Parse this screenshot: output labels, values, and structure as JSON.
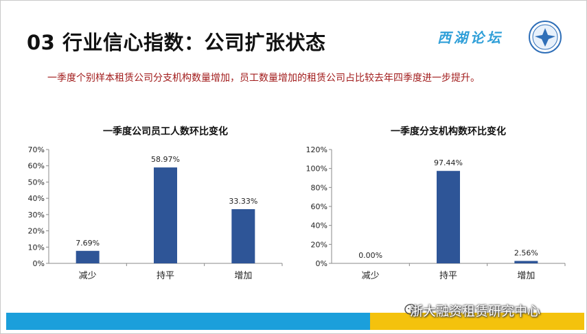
{
  "slide": {
    "title": "03 行业信心指数：公司扩张状态",
    "logo_text": "西湖论坛",
    "subtitle": "一季度个别样本租赁公司分支机构数量增加，员工数量增加的租赁公司占比较去年四季度进一步提升。",
    "watermark": "浙大融资租赁研究中心",
    "colors": {
      "bar": "#2e5597",
      "subtitle": "#a11b1b",
      "footer_blue": "#1b9fdb",
      "footer_yellow": "#f4c20d"
    }
  },
  "chart_data": [
    {
      "type": "bar",
      "title": "一季度公司员工人数环比变化",
      "categories": [
        "减少",
        "持平",
        "增加"
      ],
      "values": [
        7.69,
        58.97,
        33.33
      ],
      "value_labels": [
        "7.69%",
        "58.97%",
        "33.33%"
      ],
      "yticks": [
        "0%",
        "10%",
        "20%",
        "30%",
        "40%",
        "50%",
        "60%",
        "70%"
      ],
      "ylim": [
        0,
        70
      ],
      "grid": false,
      "legend": "none"
    },
    {
      "type": "bar",
      "title": "一季度分支机构数环比变化",
      "categories": [
        "减少",
        "持平",
        "增加"
      ],
      "values": [
        0.0,
        97.44,
        2.56
      ],
      "value_labels": [
        "0.00%",
        "97.44%",
        "2.56%"
      ],
      "yticks": [
        "0%",
        "20%",
        "40%",
        "60%",
        "80%",
        "100%",
        "120%"
      ],
      "ylim": [
        0,
        120
      ],
      "grid": false,
      "legend": "none"
    }
  ]
}
